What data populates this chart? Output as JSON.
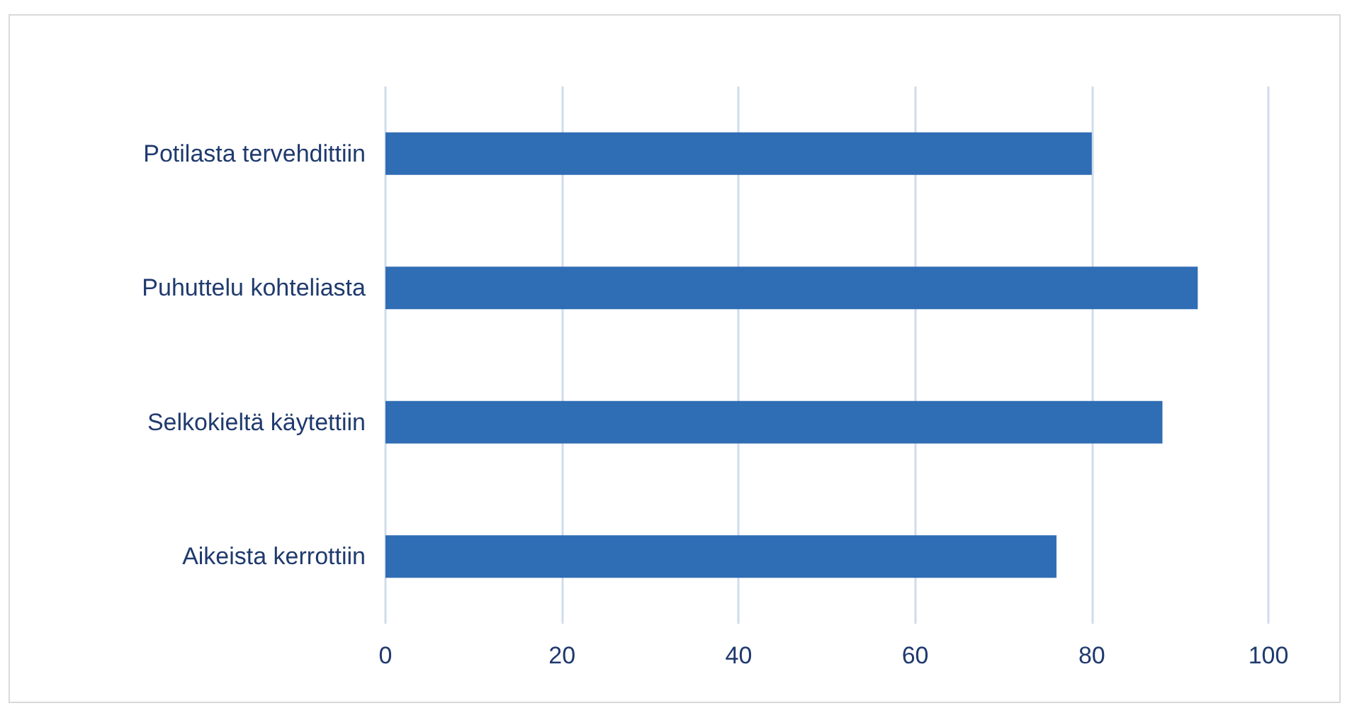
{
  "chart_data": {
    "type": "bar",
    "orientation": "horizontal",
    "categories": [
      "Potilasta tervehdittiin",
      "Puhuttelu kohteliasta",
      "Selkokieltä käytettiin",
      "Aikeista kerrottiin"
    ],
    "values": [
      80,
      92,
      88,
      76
    ],
    "color": "#2f6db5",
    "xlim": [
      0,
      100
    ],
    "xticks": [
      0,
      20,
      40,
      60,
      80,
      100
    ],
    "grid": "x"
  }
}
